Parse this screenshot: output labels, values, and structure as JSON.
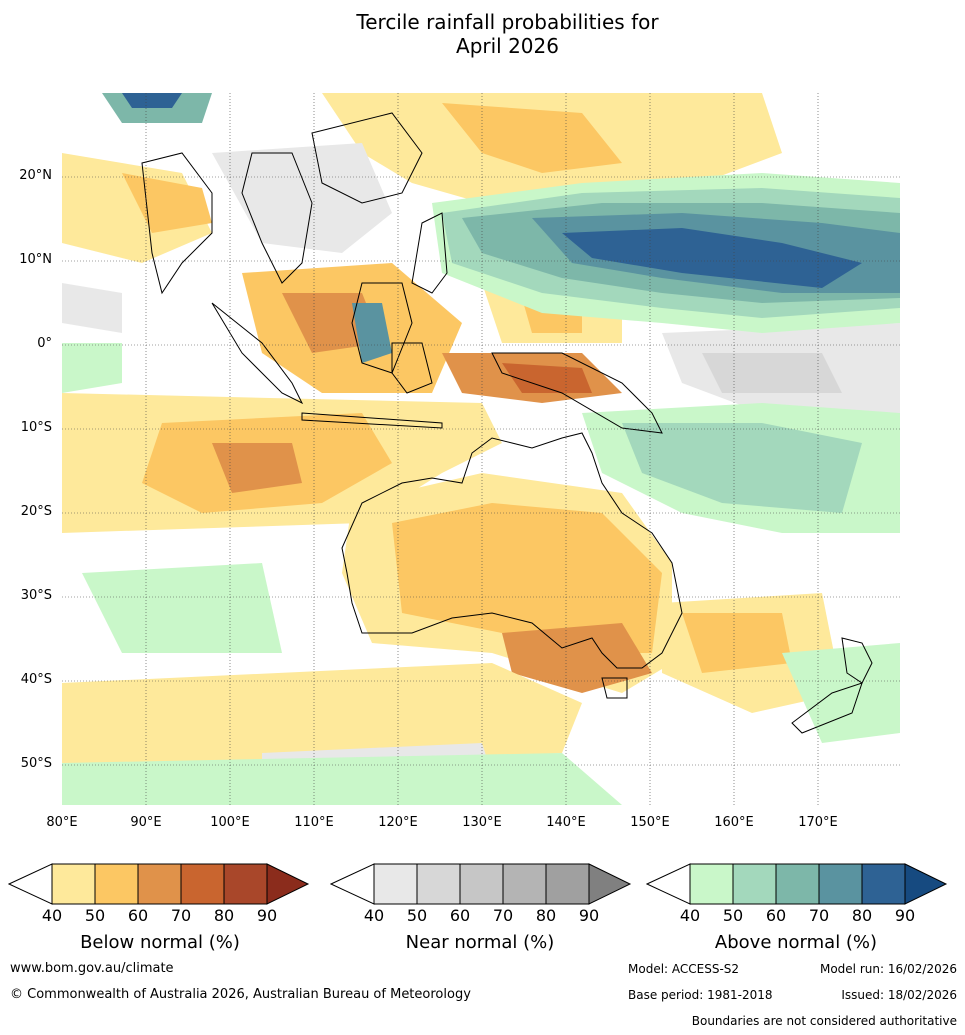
{
  "title_line1": "Tercile rainfall probabilities for",
  "title_line2": "April 2026",
  "map": {
    "lat_labels": [
      "20°N",
      "10°N",
      "0°",
      "10°S",
      "20°S",
      "30°S",
      "40°S",
      "50°S"
    ],
    "lon_labels": [
      "80°E",
      "90°E",
      "100°E",
      "110°E",
      "120°E",
      "130°E",
      "140°E",
      "150°E",
      "160°E",
      "170°E"
    ]
  },
  "colorbars": [
    {
      "title": "Below normal (%)",
      "ticks": [
        "40",
        "50",
        "60",
        "70",
        "80",
        "90"
      ],
      "colors": [
        "#ffffff",
        "#fee99b",
        "#fcc763",
        "#e0924a",
        "#c9652f",
        "#a9472a",
        "#8b2c1c"
      ]
    },
    {
      "title": "Near normal (%)",
      "ticks": [
        "40",
        "50",
        "60",
        "70",
        "80",
        "90"
      ],
      "colors": [
        "#ffffff",
        "#e8e8e8",
        "#d7d7d7",
        "#c6c6c6",
        "#b4b4b4",
        "#a0a0a0",
        "#808080"
      ]
    },
    {
      "title": "Above normal (%)",
      "ticks": [
        "40",
        "50",
        "60",
        "70",
        "80",
        "90"
      ],
      "colors": [
        "#ffffff",
        "#c9f7c9",
        "#a3d8bc",
        "#7db7a9",
        "#5a93a0",
        "#2e6294",
        "#164a80"
      ]
    }
  ],
  "footer": {
    "url": "www.bom.gov.au/climate",
    "copyright": "© Commonwealth of Australia 2026, Australian Bureau of Meteorology",
    "model": "Model: ACCESS-S2",
    "model_run": "Model run: 16/02/2026",
    "base_period": "Base period: 1981-2018",
    "issued": "Issued: 18/02/2026",
    "disclaimer": "Boundaries are not considered authoritative"
  }
}
